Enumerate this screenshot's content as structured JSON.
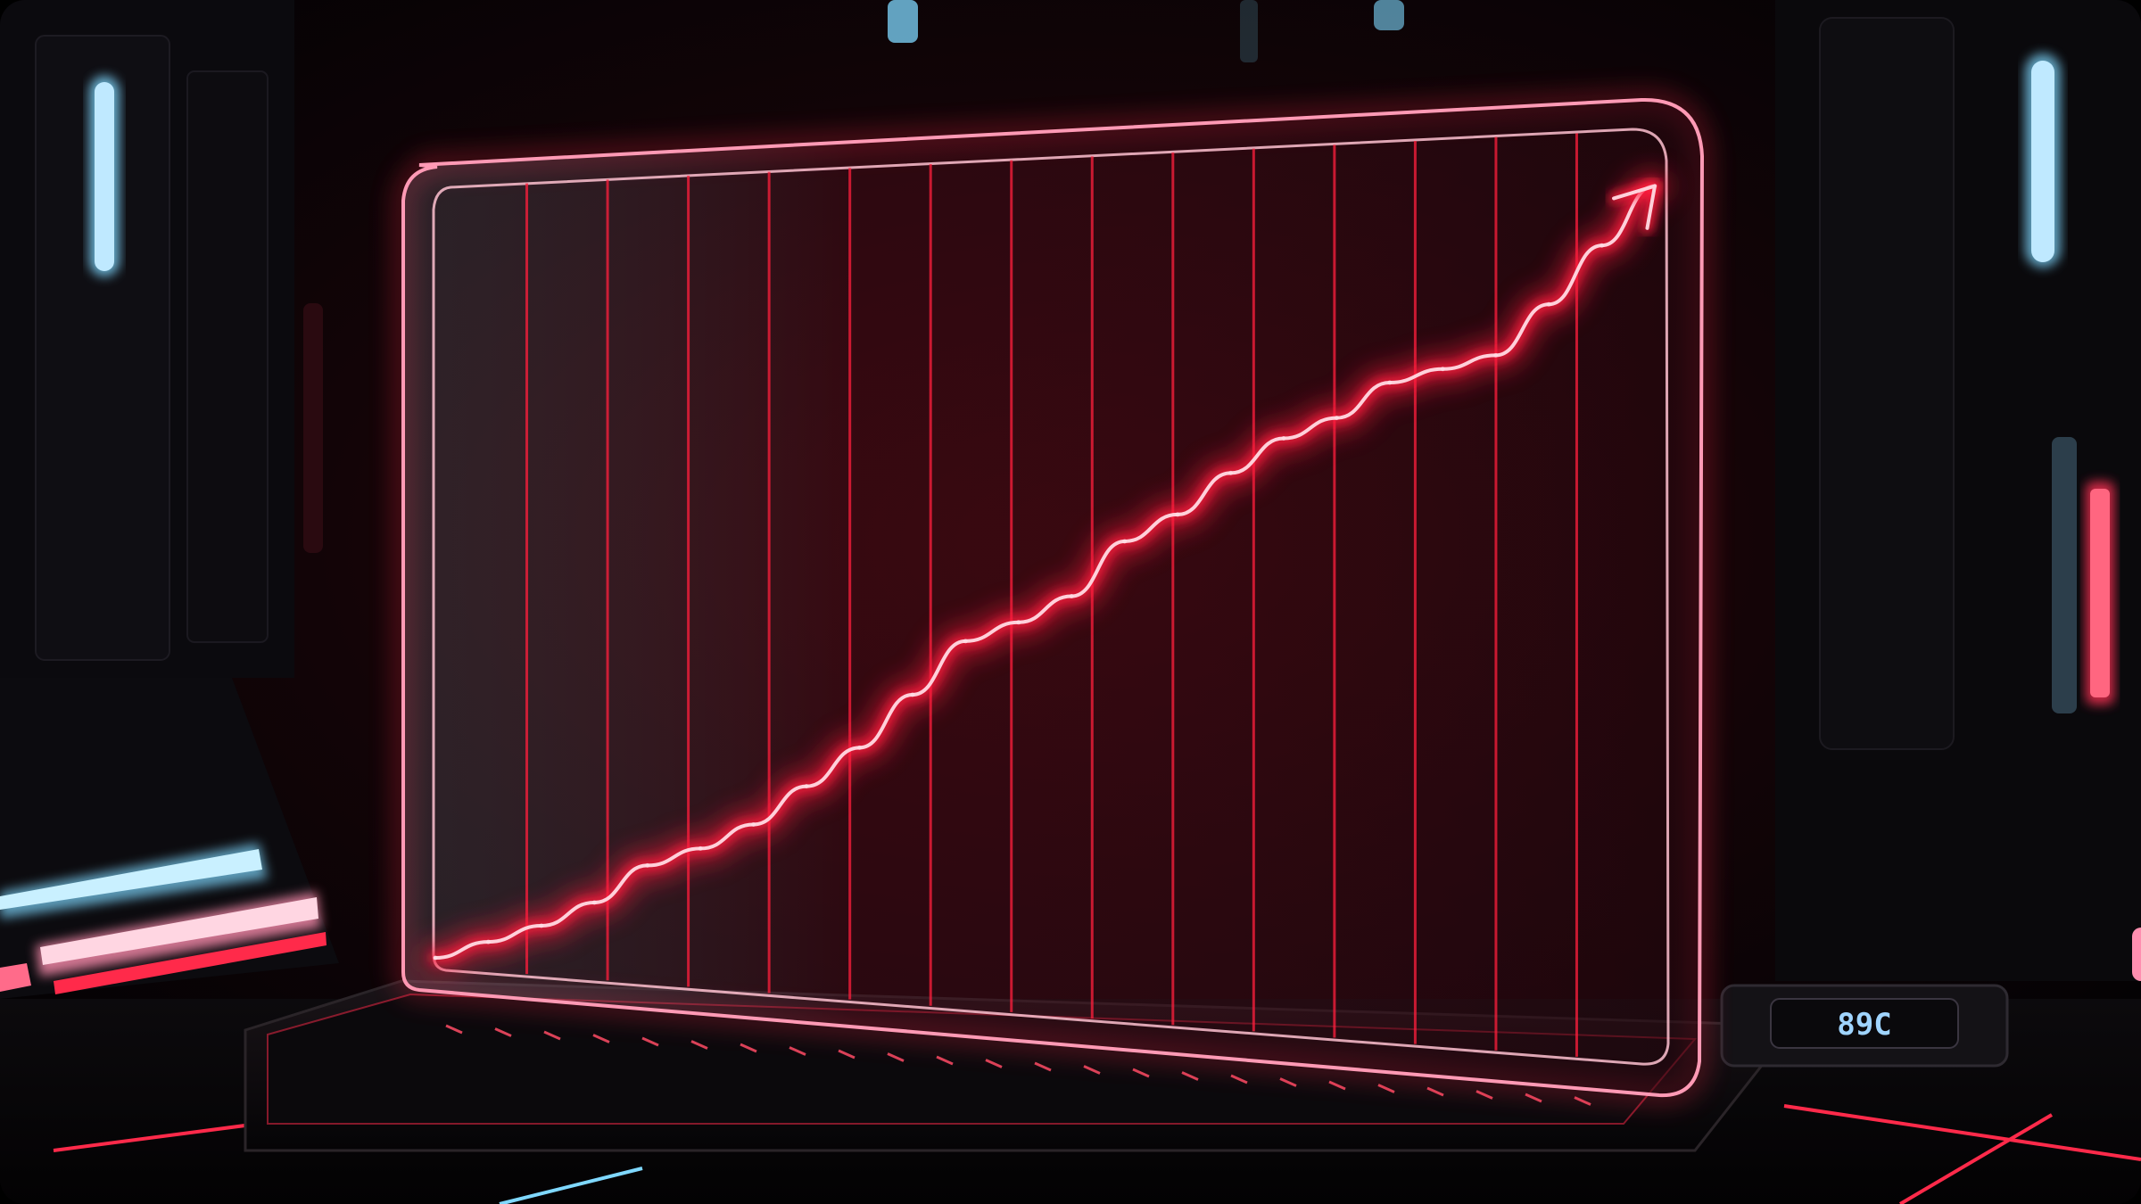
{
  "scene": {
    "type": "neon-hologram-chart-render",
    "palette": {
      "background": "#050406",
      "neon_red": "#ff1f3d",
      "neon_pink": "#ff8fb0",
      "neon_cyan": "#7fd8ff",
      "panel_tint": "#2a0a12"
    },
    "panel": {
      "gridline_count": 14,
      "trend": "rising",
      "arrow_icon": "arrow-up-right-icon"
    },
    "device_badge": {
      "text": "89C"
    }
  },
  "chart_data": {
    "type": "line",
    "title": "",
    "xlabel": "",
    "ylabel": "",
    "x": [
      0,
      1,
      2,
      3,
      4,
      5,
      6,
      7,
      8,
      9,
      10,
      11,
      12,
      13,
      14,
      15,
      16,
      17,
      18,
      19,
      20,
      21,
      22,
      23
    ],
    "series": [
      {
        "values": [
          0,
          3,
          6,
          10,
          16,
          19,
          23,
          29,
          35,
          43,
          51,
          54,
          58,
          66,
          70,
          76,
          81,
          84,
          89,
          91,
          93,
          100,
          108,
          116
        ]
      }
    ],
    "ylim": [
      0,
      120
    ],
    "grid": "vertical-lines",
    "legend": "none"
  }
}
